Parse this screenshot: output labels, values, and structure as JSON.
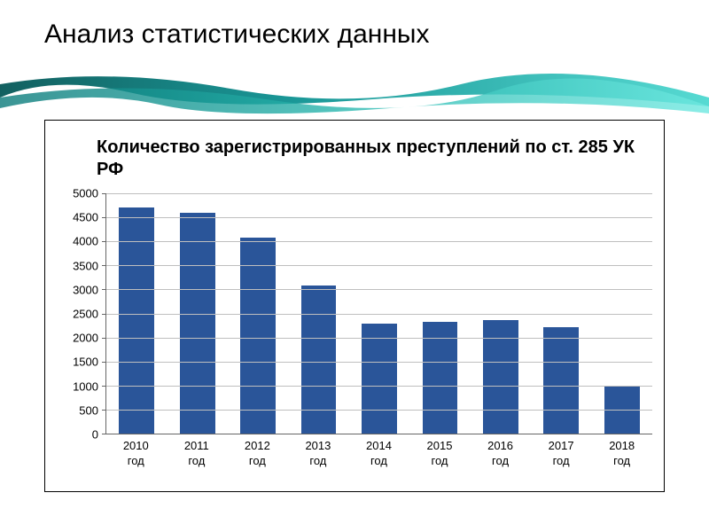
{
  "slide": {
    "title": "Анализ статистических данных",
    "title_fontsize": 30,
    "title_color": "#000000"
  },
  "decoration": {
    "wave_color_dark": "#0a7a7a",
    "wave_color_light": "#3ec9c9",
    "wave_gradient_stops": [
      "#065858",
      "#0d9090",
      "#4ed8d0"
    ]
  },
  "chart": {
    "type": "bar",
    "title": "Количество  зарегистрированных преступлений по ст. 285 УК РФ",
    "title_fontsize": 20,
    "title_weight": "bold",
    "categories": [
      "2010 год",
      "2011 год",
      "2012 год",
      "2013 год",
      "2014 год",
      "2015 год",
      "2016 год",
      "2017 год",
      "2018 год"
    ],
    "values": [
      4700,
      4600,
      4080,
      3080,
      2280,
      2320,
      2360,
      2220,
      1000
    ],
    "bar_color": "#2a5599",
    "bar_width_ratio": 0.58,
    "ylim": [
      0,
      5000
    ],
    "ytick_step": 500,
    "yticks": [
      0,
      500,
      1000,
      1500,
      2000,
      2500,
      3000,
      3500,
      4000,
      4500,
      5000
    ],
    "grid_color": "#bfbfbf",
    "axis_color": "#666666",
    "label_fontsize": 13,
    "label_color": "#000000",
    "background_color": "#ffffff",
    "container_border": "#000000"
  }
}
